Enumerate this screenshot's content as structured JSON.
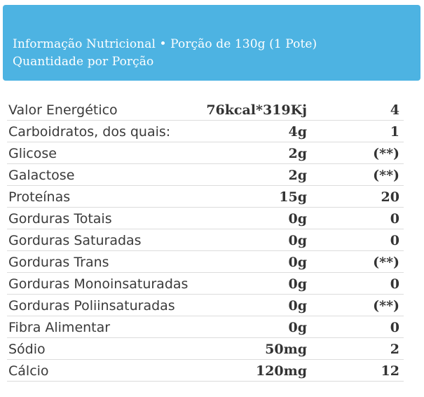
{
  "header": {
    "line1": "Informação Nutricional • Porção de 130g (1 Pote)",
    "line2": "Quantidade por Porção",
    "background": "#4db3e2"
  },
  "rows": [
    {
      "name": "Valor Energético",
      "amount": "76kcal*319Kj",
      "dv": "4"
    },
    {
      "name": "Carboidratos, dos quais:",
      "amount": "4g",
      "dv": "1"
    },
    {
      "name": "Glicose",
      "amount": "2g",
      "dv": "(**)"
    },
    {
      "name": "Galactose",
      "amount": "2g",
      "dv": "(**)"
    },
    {
      "name": "Proteínas",
      "amount": "15g",
      "dv": "20"
    },
    {
      "name": "Gorduras Totais",
      "amount": "0g",
      "dv": "0"
    },
    {
      "name": "Gorduras Saturadas",
      "amount": "0g",
      "dv": "0"
    },
    {
      "name": "Gorduras Trans",
      "amount": "0g",
      "dv": "(**)"
    },
    {
      "name": "Gorduras Monoinsaturadas",
      "amount": "0g",
      "dv": "0"
    },
    {
      "name": "Gorduras Poliinsaturadas",
      "amount": "0g",
      "dv": "(**)"
    },
    {
      "name": "Fibra Alimentar",
      "amount": "0g",
      "dv": "0"
    },
    {
      "name": "Sódio",
      "amount": "50mg",
      "dv": "2"
    },
    {
      "name": "Cálcio",
      "amount": "120mg",
      "dv": "12"
    }
  ]
}
